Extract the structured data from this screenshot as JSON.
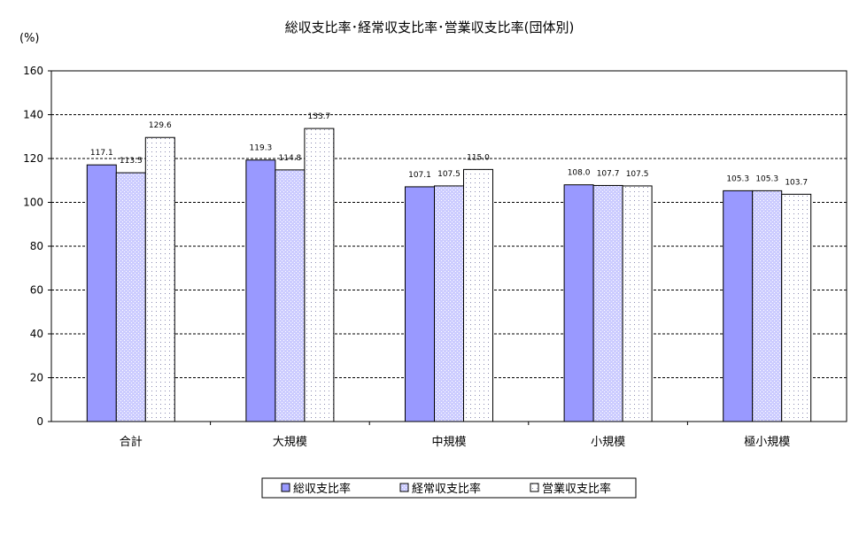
{
  "chart_data": {
    "type": "bar",
    "title": "総収支比率･経常収支比率･営業収支比率(団体別)",
    "ylabel": "(%)",
    "xlabel": "",
    "ylim": [
      0,
      160
    ],
    "yticks": [
      0,
      20,
      40,
      60,
      80,
      100,
      120,
      140,
      160
    ],
    "grid": true,
    "legend_position": "bottom",
    "categories": [
      "合計",
      "大規模",
      "中規模",
      "小規模",
      "極小規模"
    ],
    "series": [
      {
        "name": "総収支比率",
        "values": [
          117.1,
          119.3,
          107.1,
          108.0,
          105.3
        ],
        "labels": [
          "117.1",
          "119.3",
          "107.1",
          "108.0",
          "105.3"
        ],
        "color": "#9999ff"
      },
      {
        "name": "経常収支比率",
        "values": [
          113.5,
          114.8,
          107.5,
          107.7,
          105.3
        ],
        "labels": [
          "113.5",
          "114.8",
          "107.5",
          "107.7",
          "105.3"
        ],
        "color": "#ccccff"
      },
      {
        "name": "営業収支比率",
        "values": [
          129.6,
          133.7,
          115.0,
          107.5,
          103.7
        ],
        "labels": [
          "129.6",
          "133.7",
          "115.0",
          "107.5",
          "103.7"
        ],
        "color": "#ffffff"
      }
    ]
  }
}
